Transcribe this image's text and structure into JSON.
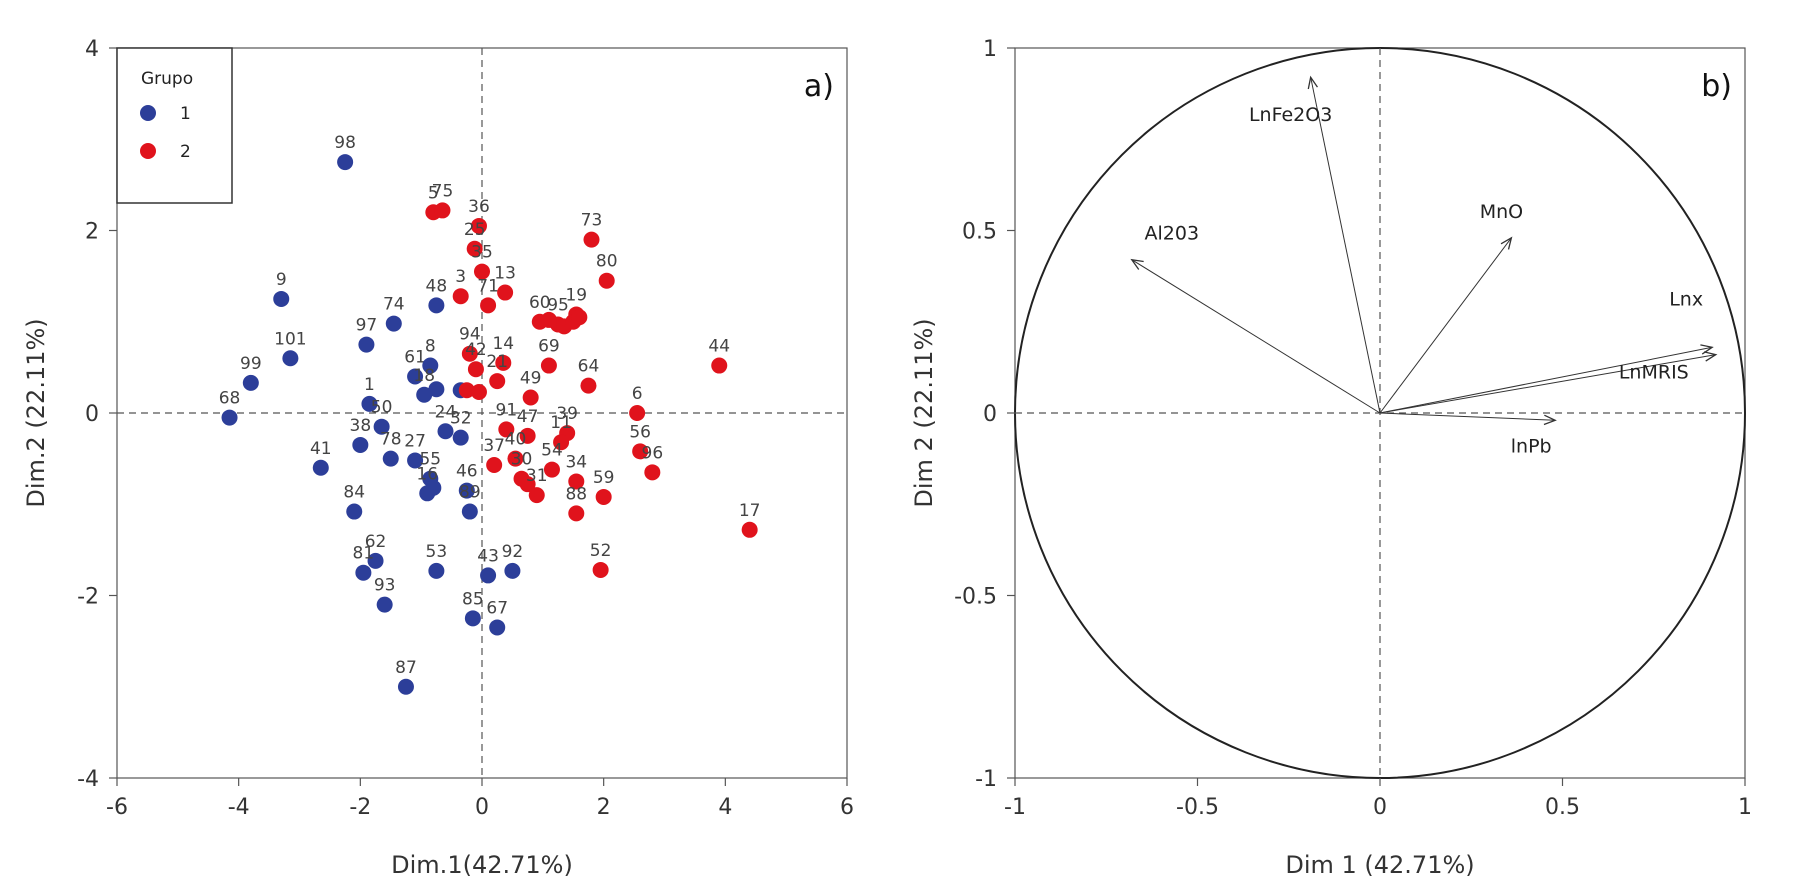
{
  "chart_data": [
    {
      "type": "scatter",
      "panel_tag": "a)",
      "xlabel": "Dim.1(42.71%)",
      "ylabel": "Dim.2 (22.11%)",
      "xlim": [
        -6,
        6
      ],
      "ylim": [
        -4,
        4
      ],
      "x_ticks": [
        -6,
        -4,
        -2,
        0,
        2,
        4,
        6
      ],
      "y_ticks": [
        -4,
        -2,
        0,
        2,
        4
      ],
      "x_tick_labels": [
        "-6",
        "-4",
        "-2",
        "0",
        "2",
        "4",
        "6"
      ],
      "y_tick_labels": [
        "-4",
        "-2",
        "0",
        "2",
        "4"
      ],
      "reference_lines": "dashed lines at x=0 and y=0",
      "legend": {
        "title": "Grupo",
        "position": "top-left",
        "entries": [
          "1",
          "2"
        ]
      },
      "series": [
        {
          "name": "1",
          "color": "#2c3e99",
          "points": [
            {
              "label": "98",
              "x": -2.25,
              "y": 2.75
            },
            {
              "label": "9",
              "x": -3.3,
              "y": 1.25
            },
            {
              "label": "101",
              "x": -3.15,
              "y": 0.6
            },
            {
              "label": "99",
              "x": -3.8,
              "y": 0.33
            },
            {
              "label": "68",
              "x": -4.15,
              "y": -0.05
            },
            {
              "label": "97",
              "x": -1.9,
              "y": 0.75
            },
            {
              "label": "74",
              "x": -1.45,
              "y": 0.98
            },
            {
              "label": "48",
              "x": -0.75,
              "y": 1.18
            },
            {
              "label": "61",
              "x": -1.1,
              "y": 0.4
            },
            {
              "label": "8",
              "x": -0.85,
              "y": 0.52
            },
            {
              "label": "18",
              "x": -0.95,
              "y": 0.2
            },
            {
              "label": "",
              "x": -0.75,
              "y": 0.26
            },
            {
              "label": "",
              "x": -0.35,
              "y": 0.25
            },
            {
              "label": "1",
              "x": -1.85,
              "y": 0.1
            },
            {
              "label": "50",
              "x": -1.65,
              "y": -0.15
            },
            {
              "label": "38",
              "x": -2.0,
              "y": -0.35
            },
            {
              "label": "78",
              "x": -1.5,
              "y": -0.5
            },
            {
              "label": "24",
              "x": -0.6,
              "y": -0.2
            },
            {
              "label": "32",
              "x": -0.35,
              "y": -0.27
            },
            {
              "label": "41",
              "x": -2.65,
              "y": -0.6
            },
            {
              "label": "27",
              "x": -1.1,
              "y": -0.52
            },
            {
              "label": "55",
              "x": -0.85,
              "y": -0.72
            },
            {
              "label": "16",
              "x": -0.9,
              "y": -0.88
            },
            {
              "label": "",
              "x": -0.8,
              "y": -0.82
            },
            {
              "label": "46",
              "x": -0.25,
              "y": -0.85
            },
            {
              "label": "89",
              "x": -0.2,
              "y": -1.08
            },
            {
              "label": "84",
              "x": -2.1,
              "y": -1.08
            },
            {
              "label": "62",
              "x": -1.75,
              "y": -1.62
            },
            {
              "label": "81",
              "x": -1.95,
              "y": -1.75
            },
            {
              "label": "93",
              "x": -1.6,
              "y": -2.1
            },
            {
              "label": "53",
              "x": -0.75,
              "y": -1.73
            },
            {
              "label": "43",
              "x": 0.1,
              "y": -1.78
            },
            {
              "label": "92",
              "x": 0.5,
              "y": -1.73
            },
            {
              "label": "85",
              "x": -0.15,
              "y": -2.25
            },
            {
              "label": "67",
              "x": 0.25,
              "y": -2.35
            },
            {
              "label": "87",
              "x": -1.25,
              "y": -3.0
            }
          ]
        },
        {
          "name": "2",
          "color": "#e0131c",
          "points": [
            {
              "label": "5",
              "x": -0.8,
              "y": 2.2
            },
            {
              "label": "75",
              "x": -0.65,
              "y": 2.22
            },
            {
              "label": "36",
              "x": -0.05,
              "y": 2.05
            },
            {
              "label": "25",
              "x": -0.12,
              "y": 1.8
            },
            {
              "label": "35",
              "x": 0.0,
              "y": 1.55
            },
            {
              "label": "3",
              "x": -0.35,
              "y": 1.28
            },
            {
              "label": "71",
              "x": 0.1,
              "y": 1.18
            },
            {
              "label": "13",
              "x": 0.38,
              "y": 1.32
            },
            {
              "label": "73",
              "x": 1.8,
              "y": 1.9
            },
            {
              "label": "80",
              "x": 2.05,
              "y": 1.45
            },
            {
              "label": "60",
              "x": 0.95,
              "y": 1.0
            },
            {
              "label": "95",
              "x": 1.25,
              "y": 0.97
            },
            {
              "label": "19",
              "x": 1.55,
              "y": 1.08
            },
            {
              "label": "",
              "x": 1.1,
              "y": 1.02
            },
            {
              "label": "",
              "x": 1.35,
              "y": 0.95
            },
            {
              "label": "",
              "x": 1.5,
              "y": 1.0
            },
            {
              "label": "",
              "x": 1.6,
              "y": 1.05
            },
            {
              "label": "94",
              "x": -0.2,
              "y": 0.65
            },
            {
              "label": "14",
              "x": 0.35,
              "y": 0.55
            },
            {
              "label": "21",
              "x": 0.25,
              "y": 0.35
            },
            {
              "label": "69",
              "x": 1.1,
              "y": 0.52
            },
            {
              "label": "64",
              "x": 1.75,
              "y": 0.3
            },
            {
              "label": "44",
              "x": 3.9,
              "y": 0.52
            },
            {
              "label": "42",
              "x": -0.1,
              "y": 0.48
            },
            {
              "label": "",
              "x": -0.25,
              "y": 0.25
            },
            {
              "label": "",
              "x": -0.05,
              "y": 0.23
            },
            {
              "label": "49",
              "x": 0.8,
              "y": 0.17
            },
            {
              "label": "6",
              "x": 2.55,
              "y": 0.0
            },
            {
              "label": "91",
              "x": 0.4,
              "y": -0.18
            },
            {
              "label": "47",
              "x": 0.75,
              "y": -0.25
            },
            {
              "label": "39",
              "x": 1.4,
              "y": -0.22
            },
            {
              "label": "11",
              "x": 1.3,
              "y": -0.32
            },
            {
              "label": "37",
              "x": 0.2,
              "y": -0.57
            },
            {
              "label": "40",
              "x": 0.55,
              "y": -0.5
            },
            {
              "label": "30",
              "x": 0.65,
              "y": -0.72
            },
            {
              "label": "",
              "x": 0.75,
              "y": -0.78
            },
            {
              "label": "31",
              "x": 0.9,
              "y": -0.9
            },
            {
              "label": "54",
              "x": 1.15,
              "y": -0.62
            },
            {
              "label": "34",
              "x": 1.55,
              "y": -0.75
            },
            {
              "label": "56",
              "x": 2.6,
              "y": -0.42
            },
            {
              "label": "96",
              "x": 2.8,
              "y": -0.65
            },
            {
              "label": "59",
              "x": 2.0,
              "y": -0.92
            },
            {
              "label": "88",
              "x": 1.55,
              "y": -1.1
            },
            {
              "label": "17",
              "x": 4.4,
              "y": -1.28
            },
            {
              "label": "52",
              "x": 1.95,
              "y": -1.72
            }
          ]
        }
      ]
    },
    {
      "type": "biplot",
      "panel_tag": "b)",
      "xlabel": "Dim 1 (42.71%)",
      "ylabel": "Dim 2 (22.11%)",
      "xlim": [
        -1,
        1
      ],
      "ylim": [
        -1,
        1
      ],
      "x_ticks": [
        -1,
        -0.5,
        0,
        0.5,
        1
      ],
      "y_ticks": [
        -1,
        -0.5,
        0,
        0.5,
        1
      ],
      "x_tick_labels": [
        "-1",
        "-0.5",
        "0",
        "0.5",
        "1"
      ],
      "y_tick_labels": [
        "-1",
        "-0.5",
        "0",
        "0.5",
        "1"
      ],
      "unit_circle": true,
      "reference_lines": "dashed lines at x=0 and y=0",
      "vectors": [
        {
          "name": "LnFe2O3",
          "x": -0.19,
          "y": 0.92
        },
        {
          "name": "Al203",
          "x": -0.68,
          "y": 0.42
        },
        {
          "name": "MnO",
          "x": 0.36,
          "y": 0.48
        },
        {
          "name": "Lnx",
          "x": 0.91,
          "y": 0.18
        },
        {
          "name": "LnMRIS",
          "x": 0.92,
          "y": 0.16
        },
        {
          "name": "lnPb",
          "x": 0.48,
          "y": -0.02
        }
      ]
    }
  ]
}
